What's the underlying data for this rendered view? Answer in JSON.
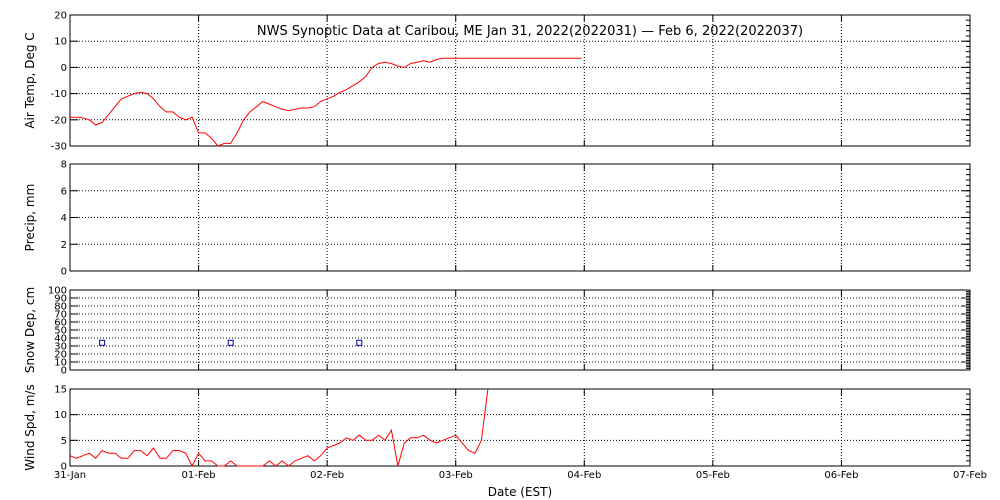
{
  "chart_data": {
    "type": "line",
    "title": "NWS Synoptic Data at Caribou, ME   Jan 31, 2022(2022031) — Feb  6, 2022(2022037)",
    "xlabel": "Date (EST)",
    "x_ticks": [
      "31-Jan",
      "01-Feb",
      "02-Feb",
      "03-Feb",
      "04-Feb",
      "05-Feb",
      "06-Feb",
      "07-Feb"
    ],
    "xlim_days": [
      0,
      7
    ],
    "colors": {
      "line": "#ff0000",
      "marker": "#0000aa",
      "grid": "#000000"
    },
    "panels": [
      {
        "id": "air-temp",
        "ylabel": "Air Temp, Deg C",
        "ylim": [
          -30,
          20
        ],
        "yticks": [
          -30,
          -20,
          -10,
          0,
          10,
          20
        ],
        "grid": true,
        "series": [
          {
            "style": "line",
            "x": [
              0.0,
              0.08,
              0.15,
              0.2,
              0.25,
              0.3,
              0.35,
              0.4,
              0.45,
              0.5,
              0.55,
              0.6,
              0.65,
              0.7,
              0.75,
              0.8,
              0.85,
              0.9,
              0.95,
              1.0,
              1.05,
              1.1,
              1.15,
              1.2,
              1.25,
              1.3,
              1.35,
              1.4,
              1.45,
              1.5,
              1.55,
              1.6,
              1.65,
              1.7,
              1.75,
              1.8,
              1.85,
              1.9,
              1.95,
              2.0,
              2.05,
              2.1,
              2.15,
              2.2,
              2.25,
              2.3,
              2.35,
              2.4,
              2.45,
              2.5,
              2.55,
              2.6,
              2.65,
              2.7,
              2.75,
              2.8,
              2.85,
              2.9,
              2.95,
              3.0,
              3.05,
              3.1,
              3.2,
              3.4,
              3.6,
              3.8,
              3.98
            ],
            "y": [
              -19,
              -19,
              -20,
              -22,
              -21,
              -18,
              -15,
              -12,
              -11,
              -10,
              -9.5,
              -10,
              -12,
              -15,
              -17,
              -17,
              -19,
              -20,
              -19,
              -25,
              -25,
              -27,
              -30,
              -29,
              -29,
              -25,
              -20,
              -17,
              -15,
              -13,
              -14,
              -15,
              -16,
              -16.5,
              -16,
              -15.5,
              -15.5,
              -15,
              -13,
              -12,
              -11,
              -9.5,
              -8.5,
              -7,
              -5.5,
              -3.5,
              0,
              1.5,
              2,
              1.5,
              0.5,
              0,
              1.5,
              2,
              2.5,
              2,
              3,
              3.5,
              3.5,
              3.5,
              3.5,
              3.5,
              3.5,
              3.5,
              3.5,
              3.5,
              3.5
            ]
          }
        ]
      },
      {
        "id": "precip",
        "ylabel": "Precip, mm",
        "ylim": [
          0,
          8
        ],
        "yticks": [
          0,
          2,
          4,
          6,
          8
        ],
        "grid": true,
        "series": []
      },
      {
        "id": "snow-depth",
        "ylabel": "Snow Dep, cm",
        "ylim": [
          0,
          100
        ],
        "yticks": [
          0,
          10,
          20,
          30,
          40,
          50,
          60,
          70,
          80,
          90,
          100
        ],
        "grid": true,
        "series": [
          {
            "style": "marker",
            "x": [
              0.25,
              1.25,
              2.25
            ],
            "y": [
              34,
              34,
              34
            ]
          }
        ]
      },
      {
        "id": "wind-speed",
        "ylabel": "Wind Spd, m/s",
        "ylim": [
          0,
          15
        ],
        "yticks": [
          0,
          5,
          10,
          15
        ],
        "grid": true,
        "series": [
          {
            "style": "line",
            "x": [
              0.0,
              0.05,
              0.1,
              0.15,
              0.2,
              0.25,
              0.3,
              0.35,
              0.4,
              0.45,
              0.5,
              0.55,
              0.6,
              0.65,
              0.7,
              0.75,
              0.8,
              0.85,
              0.9,
              0.95,
              1.0,
              1.05,
              1.1,
              1.15,
              1.2,
              1.25,
              1.3,
              1.35,
              1.4,
              1.45,
              1.5,
              1.55,
              1.6,
              1.65,
              1.7,
              1.75,
              1.8,
              1.85,
              1.9,
              1.95,
              2.0,
              2.05,
              2.1,
              2.15,
              2.2,
              2.25,
              2.3,
              2.35,
              2.4,
              2.45,
              2.5,
              2.55,
              2.6,
              2.65,
              2.7,
              2.75,
              2.8,
              2.85,
              2.9,
              2.95,
              3.0,
              3.05,
              3.1,
              3.15,
              3.2,
              3.25
            ],
            "y": [
              2,
              1.5,
              2,
              2.5,
              1.5,
              3,
              2.5,
              2.5,
              1.5,
              1.5,
              3,
              3,
              2,
              3.5,
              1.5,
              1.5,
              3,
              3,
              2.5,
              0,
              2.5,
              1,
              1,
              0,
              0,
              1,
              0,
              0,
              0,
              0,
              0,
              1,
              0,
              1,
              0,
              1,
              1.5,
              2,
              1,
              2,
              3.5,
              4,
              4.5,
              5.5,
              5,
              6,
              5,
              5,
              6,
              5,
              7,
              0,
              4.5,
              5.5,
              5.5,
              6,
              5,
              4.5,
              5,
              5.5,
              6,
              4.5,
              3,
              2.5,
              5,
              15
            ]
          }
        ]
      }
    ]
  }
}
